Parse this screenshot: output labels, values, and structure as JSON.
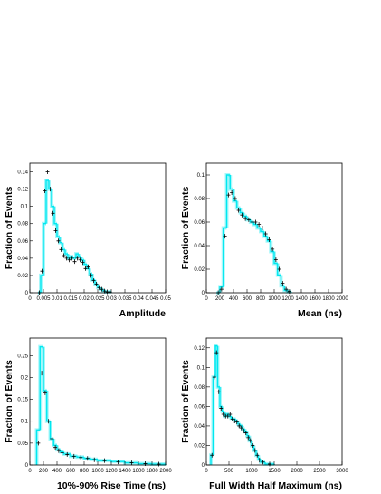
{
  "chart_data": [
    {
      "type": "histogram",
      "xlabel": "Amplitude",
      "ylabel": "Fraction of Events",
      "xlim": [
        0,
        0.05
      ],
      "xticks": [
        0,
        0.005,
        0.01,
        0.015,
        0.02,
        0.025,
        0.03,
        0.035,
        0.04,
        0.045,
        0.05
      ],
      "ylim": [
        0,
        0.15
      ],
      "yticks": [
        0,
        0.02,
        0.04,
        0.06,
        0.08,
        0.1,
        0.12,
        0.14
      ],
      "bins": [
        0.003,
        0.004,
        0.005,
        0.006,
        0.007,
        0.008,
        0.009,
        0.01,
        0.011,
        0.012,
        0.013,
        0.014,
        0.015,
        0.016,
        0.017,
        0.018,
        0.019,
        0.02,
        0.021,
        0.022,
        0.023,
        0.024,
        0.025,
        0.026,
        0.027,
        0.028,
        0.029,
        0.03
      ],
      "series": [
        {
          "color": "#00e8f0",
          "style": "step",
          "values": [
            0,
            0.02,
            0.08,
            0.13,
            0.12,
            0.1,
            0.08,
            0.065,
            0.058,
            0.05,
            0.045,
            0.04,
            0.042,
            0.04,
            0.045,
            0.042,
            0.038,
            0.033,
            0.028,
            0.022,
            0.015,
            0.01,
            0.006,
            0.004,
            0.002,
            0.001,
            0.001
          ]
        },
        {
          "color": "#000000",
          "style": "points",
          "values": [
            0,
            0.025,
            0.118,
            0.14,
            0.12,
            0.092,
            0.072,
            0.06,
            0.05,
            0.043,
            0.04,
            0.038,
            0.04,
            0.036,
            0.04,
            0.038,
            0.035,
            0.028,
            0.03,
            0.02,
            0.014,
            0.01,
            0.006,
            0.004,
            0.002,
            0.001,
            0.001
          ]
        }
      ]
    },
    {
      "type": "histogram",
      "xlabel": "Mean (ns)",
      "ylabel": "Fraction of Events",
      "xlim": [
        0,
        2000
      ],
      "xticks": [
        0,
        200,
        400,
        600,
        800,
        1000,
        1200,
        1400,
        1600,
        1800,
        2000
      ],
      "ylim": [
        0,
        0.11
      ],
      "yticks": [
        0,
        0.02,
        0.04,
        0.06,
        0.08,
        0.1
      ],
      "bins": [
        150,
        200,
        250,
        300,
        350,
        400,
        450,
        500,
        550,
        600,
        650,
        700,
        750,
        800,
        850,
        900,
        950,
        1000,
        1050,
        1100,
        1150,
        1200,
        1250
      ],
      "series": [
        {
          "color": "#00e8f0",
          "style": "step",
          "values": [
            0,
            0.005,
            0.055,
            0.1,
            0.088,
            0.078,
            0.072,
            0.068,
            0.065,
            0.062,
            0.06,
            0.058,
            0.055,
            0.052,
            0.048,
            0.044,
            0.035,
            0.025,
            0.015,
            0.006,
            0.002,
            0.001
          ]
        },
        {
          "color": "#000000",
          "style": "points",
          "values": [
            0,
            0.003,
            0.048,
            0.083,
            0.085,
            0.08,
            0.07,
            0.066,
            0.063,
            0.062,
            0.06,
            0.06,
            0.058,
            0.055,
            0.05,
            0.045,
            0.037,
            0.028,
            0.02,
            0.008,
            0.003,
            0.001
          ]
        }
      ]
    },
    {
      "type": "histogram",
      "xlabel": "10%-90% Rise Time (ns)",
      "ylabel": "Fraction of Events",
      "xlim": [
        0,
        2000
      ],
      "xticks": [
        0,
        200,
        400,
        600,
        800,
        1000,
        1200,
        1400,
        1600,
        1800,
        2000
      ],
      "ylim": [
        0,
        0.29
      ],
      "yticks": [
        0,
        0.05,
        0.1,
        0.15,
        0.2,
        0.25
      ],
      "bins": [
        100,
        150,
        200,
        250,
        300,
        350,
        400,
        450,
        500,
        600,
        700,
        800,
        900,
        1000,
        1200,
        1400,
        1600,
        1800,
        2000
      ],
      "series": [
        {
          "color": "#00e8f0",
          "style": "step",
          "values": [
            0.08,
            0.27,
            0.17,
            0.1,
            0.06,
            0.045,
            0.035,
            0.03,
            0.025,
            0.02,
            0.018,
            0.015,
            0.013,
            0.01,
            0.008,
            0.005,
            0.003,
            0.002
          ]
        },
        {
          "color": "#000000",
          "style": "points",
          "values": [
            0.05,
            0.21,
            0.165,
            0.1,
            0.06,
            0.04,
            0.033,
            0.028,
            0.024,
            0.02,
            0.017,
            0.015,
            0.012,
            0.01,
            0.007,
            0.005,
            0.003,
            0.002
          ]
        }
      ]
    },
    {
      "type": "histogram",
      "xlabel": "Full Width Half Maximum (ns)",
      "ylabel": "Fraction of Events",
      "xlim": [
        0,
        3000
      ],
      "xticks": [
        0,
        500,
        1000,
        1500,
        2000,
        2500,
        3000
      ],
      "ylim": [
        0,
        0.13
      ],
      "yticks": [
        0,
        0.02,
        0.04,
        0.06,
        0.08,
        0.1,
        0.12
      ],
      "bins": [
        100,
        150,
        200,
        250,
        300,
        350,
        400,
        450,
        500,
        550,
        600,
        650,
        700,
        750,
        800,
        850,
        900,
        950,
        1000,
        1050,
        1100,
        1150,
        1200,
        1300,
        1500
      ],
      "series": [
        {
          "color": "#00e8f0",
          "style": "step",
          "values": [
            0.01,
            0.09,
            0.122,
            0.08,
            0.06,
            0.055,
            0.05,
            0.052,
            0.05,
            0.048,
            0.047,
            0.045,
            0.042,
            0.04,
            0.037,
            0.034,
            0.03,
            0.025,
            0.02,
            0.015,
            0.01,
            0.006,
            0.003,
            0.001
          ]
        },
        {
          "color": "#000000",
          "style": "points",
          "values": [
            0.01,
            0.09,
            0.115,
            0.075,
            0.058,
            0.052,
            0.05,
            0.05,
            0.052,
            0.047,
            0.045,
            0.044,
            0.04,
            0.038,
            0.035,
            0.033,
            0.028,
            0.025,
            0.02,
            0.015,
            0.01,
            0.005,
            0.003,
            0.001
          ]
        }
      ]
    }
  ]
}
